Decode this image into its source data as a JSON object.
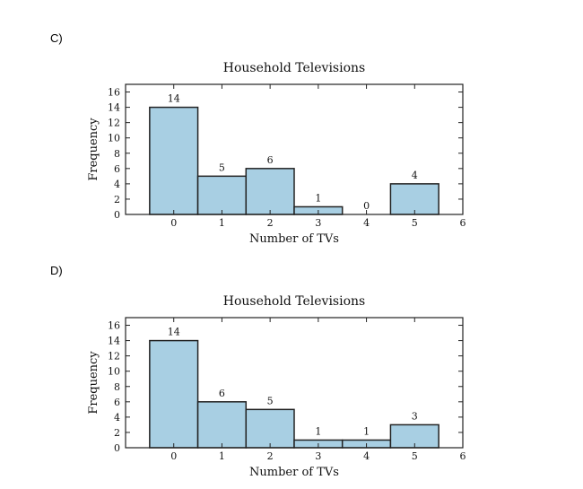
{
  "options": [
    {
      "label": "C)",
      "chart": {
        "type": "bar",
        "title": "Household Televisions",
        "xlabel": "Number of TVs",
        "ylabel": "Frequency",
        "categories": [
          0,
          1,
          2,
          3,
          4,
          5
        ],
        "values": [
          14,
          5,
          6,
          1,
          0,
          4
        ],
        "xticks": [
          0,
          1,
          2,
          3,
          4,
          5,
          6
        ],
        "yticks": [
          0,
          2,
          4,
          6,
          8,
          10,
          12,
          14,
          16
        ],
        "xlim": [
          -1,
          6
        ],
        "ylim": [
          0,
          17
        ],
        "bar_color": "#a8cfe3",
        "edge_color": "#222222"
      }
    },
    {
      "label": "D)",
      "chart": {
        "type": "bar",
        "title": "Household Televisions",
        "xlabel": "Number of TVs",
        "ylabel": "Frequency",
        "categories": [
          0,
          1,
          2,
          3,
          4,
          5
        ],
        "values": [
          14,
          6,
          5,
          1,
          1,
          3
        ],
        "xticks": [
          0,
          1,
          2,
          3,
          4,
          5,
          6
        ],
        "yticks": [
          0,
          2,
          4,
          6,
          8,
          10,
          12,
          14,
          16
        ],
        "xlim": [
          -1,
          6
        ],
        "ylim": [
          0,
          17
        ],
        "bar_color": "#a8cfe3",
        "edge_color": "#222222"
      }
    }
  ],
  "chart_data": [
    {
      "type": "bar",
      "title": "Household Televisions",
      "xlabel": "Number of TVs",
      "ylabel": "Frequency",
      "categories": [
        0,
        1,
        2,
        3,
        4,
        5
      ],
      "values": [
        14,
        5,
        6,
        1,
        0,
        4
      ],
      "ylim": [
        0,
        17
      ]
    },
    {
      "type": "bar",
      "title": "Household Televisions",
      "xlabel": "Number of TVs",
      "ylabel": "Frequency",
      "categories": [
        0,
        1,
        2,
        3,
        4,
        5
      ],
      "values": [
        14,
        6,
        5,
        1,
        1,
        3
      ],
      "ylim": [
        0,
        17
      ]
    }
  ]
}
